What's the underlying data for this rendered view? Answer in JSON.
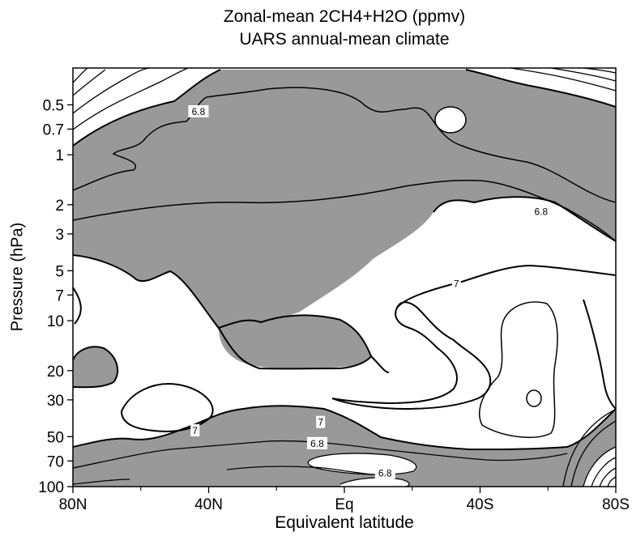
{
  "chart_data": {
    "type": "contour",
    "title": "Zonal-mean 2CH4+H2O (ppmv)",
    "subtitle": "UARS annual-mean climate",
    "xlabel": "Equivalent latitude",
    "ylabel": "Pressure (hPa)",
    "x_ticks": [
      "80N",
      "40N",
      "Eq",
      "40S",
      "80S"
    ],
    "x_values": [
      80,
      40,
      0,
      -40,
      -80
    ],
    "xlim": [
      80,
      -80
    ],
    "y_ticks": [
      "0.5",
      "0.7",
      "1",
      "2",
      "3",
      "5",
      "7",
      "10",
      "20",
      "30",
      "50",
      "70",
      "100"
    ],
    "y_values": [
      0.5,
      0.7,
      1,
      2,
      3,
      5,
      7,
      10,
      20,
      30,
      50,
      70,
      100
    ],
    "ylim": [
      0.3,
      100
    ],
    "y_scale": "log",
    "shading": "values between 6.8 and 7 ppmv shaded gray",
    "contour_labels": [
      {
        "text": "6.8",
        "lat": 43,
        "p": 0.55
      },
      {
        "text": "6.8",
        "lat": -58,
        "p": 2.2
      },
      {
        "text": "7",
        "lat": -33,
        "p": 6.0
      },
      {
        "text": "7",
        "lat": 44,
        "p": 46
      },
      {
        "text": "7",
        "lat": 7,
        "p": 41
      },
      {
        "text": "6.8",
        "lat": 8,
        "p": 55
      },
      {
        "text": "6.8",
        "lat": -12,
        "p": 83
      }
    ],
    "colors": {
      "shade": "#999999",
      "line": "#000000",
      "background": "#ffffff"
    }
  }
}
